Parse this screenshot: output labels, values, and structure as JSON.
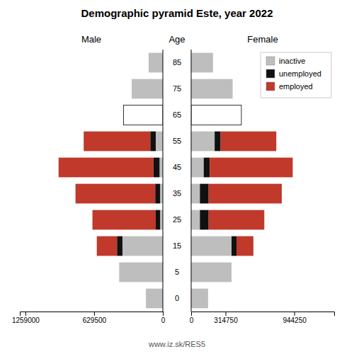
{
  "chart_data": {
    "type": "bar",
    "orientation": "horizontal",
    "stacked": true,
    "grid": false,
    "legend": "upper right",
    "title": "Demographic pyramid Este, year 2022",
    "ylabel": "Age",
    "footer": "www.iz.sk/RES5",
    "categories": [
      "0",
      "5",
      "15",
      "25",
      "35",
      "45",
      "55",
      "65",
      "75",
      "85"
    ],
    "panels": [
      {
        "title": "Male",
        "xlim": [
          1310000,
          0
        ],
        "xticks": [
          1259000,
          629500,
          0
        ],
        "series": [
          {
            "name": "inactive",
            "color": "#BEBEBE",
            "values": [
              155000,
              400000,
              370000,
              25000,
              25000,
              30000,
              65000,
              null,
              285000,
              130000
            ]
          },
          {
            "name": "unemployed",
            "color": "#111111",
            "values": [
              0,
              0,
              50000,
              40000,
              45000,
              55000,
              50000,
              null,
              0,
              0
            ]
          },
          {
            "name": "employed",
            "color": "#C0392B",
            "values": [
              0,
              0,
              185000,
              580000,
              730000,
              870000,
              610000,
              null,
              0,
              0
            ]
          },
          {
            "color": "#FFFFFF",
            "values": [
              null,
              null,
              null,
              null,
              null,
              null,
              null,
              360000,
              null,
              null
            ]
          }
        ]
      },
      {
        "title": "Female",
        "xlim": [
          0,
          1310000
        ],
        "xticks": [
          0,
          314750,
          944250
        ],
        "series": [
          {
            "name": "inactive",
            "color": "#BEBEBE",
            "values": [
              155000,
              370000,
              370000,
              80000,
              80000,
              115000,
              215000,
              null,
              380000,
              200000
            ]
          },
          {
            "name": "unemployed",
            "color": "#111111",
            "values": [
              0,
              0,
              45000,
              80000,
              80000,
              55000,
              55000,
              null,
              0,
              0
            ]
          },
          {
            "name": "employed",
            "color": "#C0392B",
            "values": [
              0,
              0,
              155000,
              510000,
              670000,
              760000,
              510000,
              null,
              0,
              0
            ]
          },
          {
            "color": "#FFFFFF",
            "values": [
              null,
              null,
              null,
              null,
              null,
              null,
              null,
              460000,
              null,
              null
            ]
          }
        ]
      }
    ]
  }
}
